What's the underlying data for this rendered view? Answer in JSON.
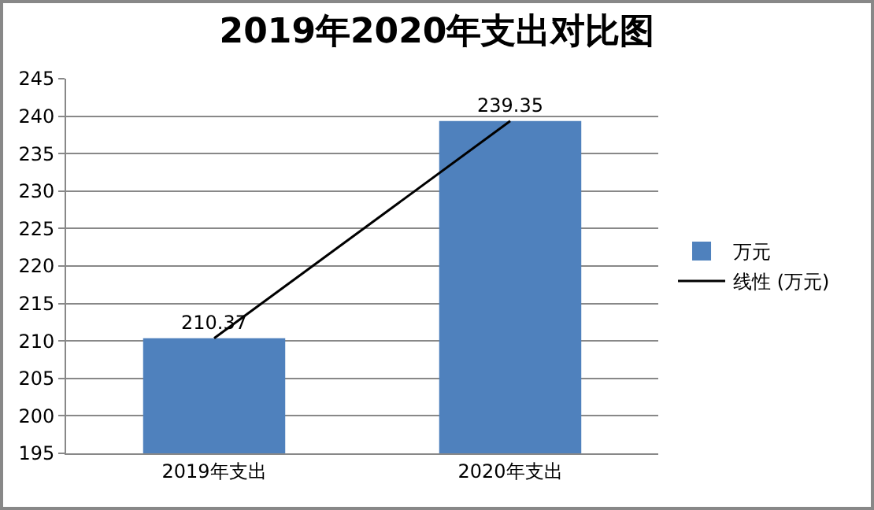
{
  "chart_data": {
    "type": "bar",
    "title": "2019年2020年支出对比图",
    "categories": [
      "2019年支出",
      "2020年支出"
    ],
    "series": [
      {
        "name": "万元",
        "color": "#4f81bd",
        "values": [
          210.37,
          239.35
        ],
        "value_labels": [
          "210.37",
          "239.35"
        ]
      },
      {
        "type": "line",
        "name": "线性 (万元)",
        "color": "#000000",
        "x": [
          "2019年支出",
          "2020年支出"
        ],
        "values": [
          210.37,
          239.35
        ]
      }
    ],
    "ylim": [
      195,
      245
    ],
    "yticks": [
      195,
      200,
      205,
      210,
      215,
      220,
      225,
      230,
      235,
      240,
      245
    ],
    "grid": "y",
    "legend": "right",
    "marker": "none",
    "line_style": "solid"
  }
}
